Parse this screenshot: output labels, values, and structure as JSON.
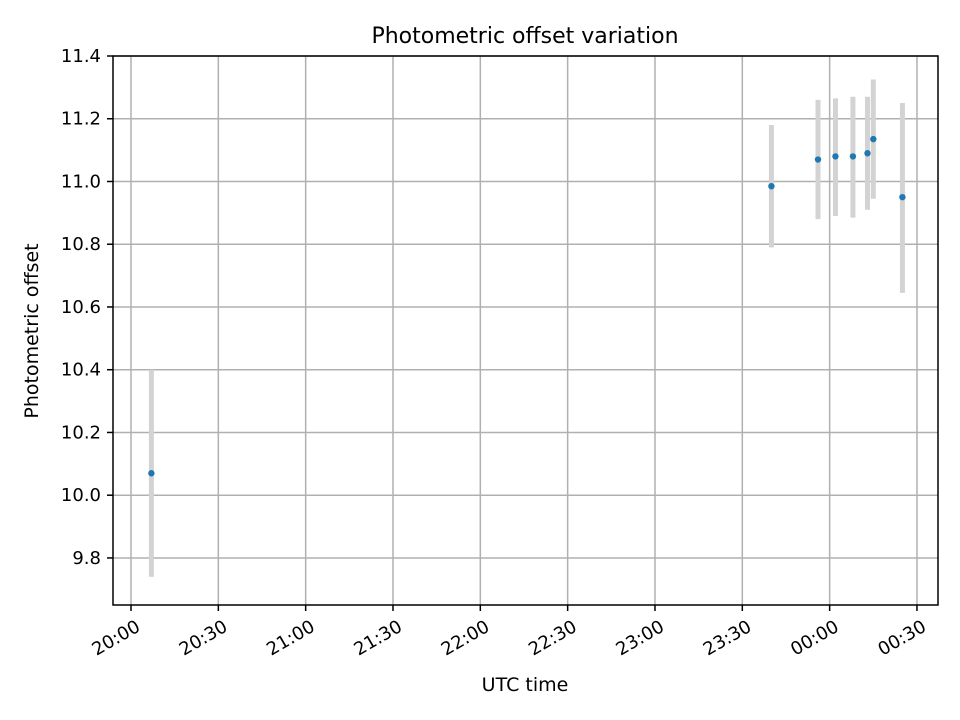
{
  "chart_data": {
    "type": "scatter",
    "title": "Photometric offset variation",
    "xlabel": "UTC time",
    "ylabel": "Photometric offset",
    "grid": true,
    "x_is_time": true,
    "xlim": [
      "20:00",
      "00:30"
    ],
    "ylim": [
      9.65,
      11.4
    ],
    "x_ticks": [
      "20:00",
      "20:30",
      "21:00",
      "21:30",
      "22:00",
      "22:30",
      "23:00",
      "23:30",
      "00:00",
      "00:30"
    ],
    "y_ticks": [
      "9.8",
      "10.0",
      "10.2",
      "10.4",
      "10.6",
      "10.8",
      "11.0",
      "11.2",
      "11.4"
    ],
    "point_color": "#1f77b4",
    "errorbar_color": "#d3d3d3",
    "points": [
      {
        "x": "20:07",
        "y": 10.07,
        "y_low": 9.74,
        "y_high": 10.4
      },
      {
        "x": "23:40",
        "y": 10.985,
        "y_low": 10.79,
        "y_high": 11.18
      },
      {
        "x": "23:56",
        "y": 11.07,
        "y_low": 10.88,
        "y_high": 11.26
      },
      {
        "x": "00:02",
        "y": 11.08,
        "y_low": 10.89,
        "y_high": 11.265
      },
      {
        "x": "00:08",
        "y": 11.08,
        "y_low": 10.885,
        "y_high": 11.27
      },
      {
        "x": "00:13",
        "y": 11.09,
        "y_low": 10.91,
        "y_high": 11.27
      },
      {
        "x": "00:15",
        "y": 11.135,
        "y_low": 10.945,
        "y_high": 11.325
      },
      {
        "x": "00:25",
        "y": 10.95,
        "y_low": 10.645,
        "y_high": 11.25
      }
    ]
  }
}
